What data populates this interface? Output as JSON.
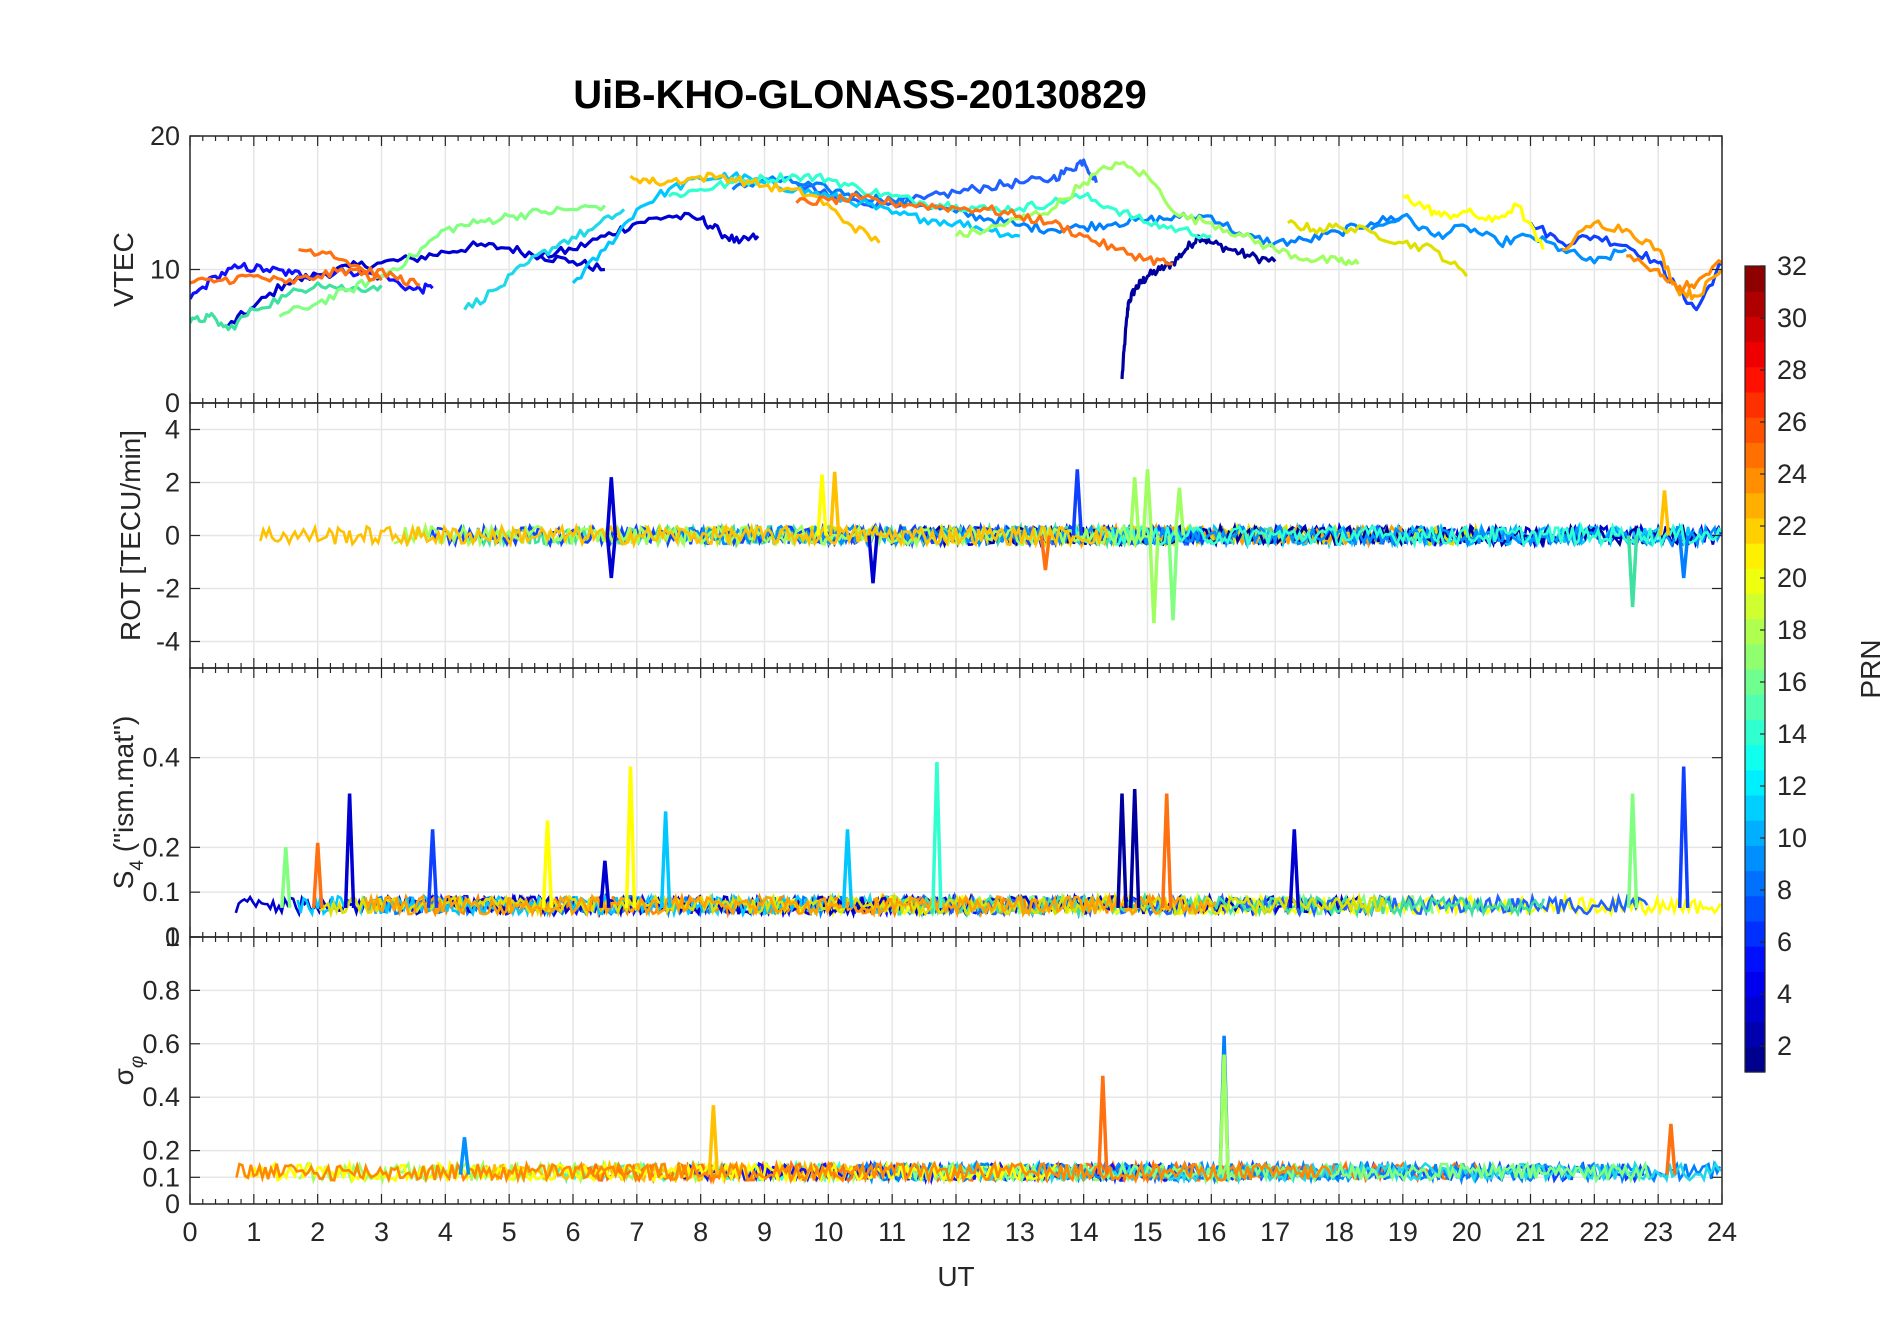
{
  "chart_data": [
    {
      "type": "line",
      "title": "UiB-KHO-GLONASS-20130829",
      "ylabel": "VTEC",
      "ylim": [
        0,
        20
      ],
      "yticks": [
        "0",
        "10",
        "20"
      ],
      "ytick_values": [
        0,
        10,
        20
      ],
      "xlim": [
        0,
        24
      ],
      "grid": true,
      "series": [
        {
          "color": "#00009f",
          "x": [
            14.6,
            14.65,
            14.7,
            14.8,
            14.9,
            15.0,
            15.2,
            15.4,
            15.6,
            15.8,
            16.0,
            16.3,
            16.6,
            17.0
          ],
          "y": [
            1.8,
            5.0,
            7.5,
            8.5,
            9.0,
            9.5,
            10.0,
            10.5,
            11.5,
            12.5,
            12.0,
            11.5,
            11.0,
            10.6
          ]
        },
        {
          "color": "#0000d0",
          "x": [
            0.6,
            1.0,
            1.5,
            2.0,
            2.5,
            3.0,
            3.5,
            4.0,
            4.5,
            5.0,
            5.5,
            6.0,
            6.5
          ],
          "y": [
            5.8,
            7.2,
            9.0,
            9.6,
            10.2,
            10.5,
            10.8,
            11.3,
            11.8,
            11.6,
            11.0,
            10.6,
            10.0
          ]
        },
        {
          "color": "#0000d0",
          "x": [
            5.5,
            6.0,
            6.5,
            7.0,
            7.5,
            8.0,
            8.3,
            8.6,
            8.9
          ],
          "y": [
            11.0,
            11.5,
            12.5,
            13.5,
            14.0,
            13.8,
            12.8,
            12.0,
            12.5
          ]
        },
        {
          "color": "#1010ff",
          "x": [
            0.0,
            0.4,
            0.8,
            1.2,
            1.6,
            2.0,
            2.5,
            3.0,
            3.5,
            3.8
          ],
          "y": [
            7.8,
            9.5,
            10.2,
            10.0,
            9.7,
            9.6,
            9.9,
            9.5,
            8.5,
            8.6
          ]
        },
        {
          "color": "#2060ff",
          "x": [
            9.5,
            10.0,
            10.5,
            11.0,
            11.5,
            12.0,
            12.5,
            13.0,
            13.5,
            13.8,
            14.0,
            14.2
          ],
          "y": [
            16.5,
            15.5,
            15.0,
            15.0,
            15.3,
            15.8,
            16.2,
            16.5,
            16.8,
            17.5,
            18.2,
            16.5
          ]
        },
        {
          "color": "#1040ff",
          "x": [
            21.0,
            21.5,
            22.0,
            22.5,
            23.0,
            23.3,
            23.6,
            24.0
          ],
          "y": [
            13.5,
            12.0,
            12.5,
            11.8,
            10.5,
            8.5,
            7.0,
            10.5
          ]
        },
        {
          "color": "#0080ff",
          "x": [
            8.5,
            9.0,
            9.5,
            10.0,
            10.5,
            11.0,
            11.5,
            12.0,
            12.5,
            13.0,
            13.5,
            14.0,
            14.5,
            15.0,
            15.5,
            16.0,
            16.5,
            17.0,
            17.5,
            18.0,
            18.5,
            19.0
          ],
          "y": [
            16.0,
            16.8,
            16.5,
            16.0,
            15.5,
            15.2,
            14.8,
            14.3,
            13.8,
            13.3,
            13.0,
            13.2,
            13.5,
            13.7,
            13.9,
            14.0,
            12.5,
            12.0,
            12.2,
            12.8,
            13.5,
            14.0
          ]
        },
        {
          "color": "#0090ff",
          "x": [
            18.5,
            19.0,
            19.5,
            20.0,
            20.5,
            21.0,
            21.5,
            22.0,
            22.5
          ],
          "y": [
            13.0,
            14.0,
            12.5,
            13.2,
            12.0,
            12.5,
            11.5,
            10.5,
            11.5
          ]
        },
        {
          "color": "#00c8ff",
          "x": [
            6.0,
            6.5,
            7.0,
            7.5,
            8.0,
            8.5,
            9.0,
            9.5,
            10.0,
            10.5,
            11.0,
            11.5,
            12.0,
            12.5,
            13.0
          ],
          "y": [
            9.0,
            11.5,
            14.5,
            16.0,
            16.8,
            17.0,
            16.5,
            16.0,
            15.5,
            15.0,
            14.2,
            13.8,
            13.5,
            13.0,
            12.5
          ]
        },
        {
          "color": "#30ffd0",
          "x": [
            7.5,
            8.0,
            8.5,
            9.0,
            9.5,
            10.0,
            10.5,
            11.0,
            11.5,
            12.0,
            12.5,
            13.0,
            13.5,
            14.0,
            14.5,
            15.0,
            15.5,
            16.0
          ],
          "y": [
            15.5,
            16.0,
            16.5,
            16.8,
            17.0,
            16.8,
            16.0,
            15.5,
            15.0,
            14.8,
            14.5,
            14.6,
            15.0,
            15.5,
            14.5,
            13.5,
            13.0,
            12.5
          ]
        },
        {
          "color": "#40e0a0",
          "x": [
            0.0,
            0.3,
            0.6,
            1.0,
            1.5,
            2.0,
            2.5,
            3.0
          ],
          "y": [
            6.0,
            6.5,
            5.5,
            7.0,
            8.0,
            9.0,
            8.5,
            8.8
          ]
        },
        {
          "color": "#20d8e8",
          "x": [
            4.3,
            4.8,
            5.3,
            5.8,
            6.3,
            6.8
          ],
          "y": [
            7.0,
            8.5,
            10.5,
            12.0,
            13.0,
            14.5
          ]
        },
        {
          "color": "#80ff80",
          "x": [
            1.4,
            2.0,
            2.5,
            3.0,
            3.5,
            4.0,
            4.5,
            5.0,
            5.5,
            6.0,
            6.5
          ],
          "y": [
            6.5,
            7.5,
            8.5,
            9.5,
            11.0,
            13.0,
            13.5,
            14.0,
            14.3,
            14.5,
            14.8
          ]
        },
        {
          "color": "#a0ff60",
          "x": [
            12.0,
            12.5,
            13.0,
            13.5,
            14.0,
            14.5,
            15.0,
            15.5,
            16.0,
            16.5,
            17.0,
            17.5,
            18.0,
            18.3
          ],
          "y": [
            12.5,
            13.0,
            13.8,
            14.5,
            16.5,
            18.0,
            17.0,
            14.0,
            13.5,
            12.5,
            11.5,
            10.8,
            10.6,
            10.4
          ]
        },
        {
          "color": "#ffff00",
          "x": [
            19.0,
            19.3,
            19.6,
            20.0,
            20.4,
            20.8,
            21.2
          ],
          "y": [
            15.5,
            14.8,
            14.0,
            14.3,
            13.6,
            14.8,
            11.5
          ]
        },
        {
          "color": "#e0e000",
          "x": [
            17.2,
            17.6,
            18.0,
            18.5,
            19.0,
            19.5,
            20.0
          ],
          "y": [
            13.5,
            13.0,
            13.2,
            12.8,
            12.0,
            11.5,
            9.5
          ]
        },
        {
          "color": "#ffc000",
          "x": [
            6.9,
            7.3,
            7.8,
            8.3,
            8.8,
            9.3,
            9.8,
            10.3,
            10.8
          ],
          "y": [
            17.0,
            16.5,
            16.8,
            17.0,
            16.5,
            16.0,
            15.5,
            13.5,
            12.0
          ]
        },
        {
          "color": "#ffa000",
          "x": [
            21.5,
            22.0,
            22.5,
            23.0,
            23.3,
            23.6,
            24.0
          ],
          "y": [
            11.5,
            13.5,
            13.0,
            11.5,
            8.5,
            8.0,
            10.0
          ]
        },
        {
          "color": "#ff7010",
          "x": [
            1.7,
            2.2,
            2.7,
            3.2,
            3.6
          ],
          "y": [
            11.5,
            11.3,
            10.0,
            9.5,
            8.8
          ]
        },
        {
          "color": "#ff7010",
          "x": [
            9.5,
            10.0,
            10.5,
            11.0,
            11.5,
            12.0,
            12.5,
            13.0,
            13.5,
            14.0,
            14.5,
            15.0,
            15.4
          ],
          "y": [
            15.0,
            15.2,
            15.3,
            15.0,
            14.8,
            14.6,
            14.5,
            14.0,
            13.5,
            12.5,
            11.5,
            10.8,
            10.4
          ]
        },
        {
          "color": "#ff7010",
          "x": [
            0.0,
            0.5,
            1.0,
            1.5,
            2.0,
            2.5,
            3.0
          ],
          "y": [
            9.0,
            9.2,
            9.5,
            9.0,
            9.5,
            10.0,
            9.2
          ]
        },
        {
          "color": "#ff8800",
          "x": [
            22.5,
            23.0,
            23.3,
            23.6,
            24.0
          ],
          "y": [
            11.0,
            10.0,
            8.5,
            9.0,
            10.5
          ]
        }
      ]
    },
    {
      "type": "line",
      "ylabel": "ROT [TECU/min]",
      "ylim": [
        -5,
        5
      ],
      "yticks": [
        "-4",
        "-2",
        "0",
        "2",
        "4"
      ],
      "ytick_values": [
        -4,
        -2,
        0,
        2,
        4
      ],
      "xlim": [
        0,
        24
      ],
      "grid": true,
      "base_level": 0,
      "noise_amplitude": 0.35,
      "spikes": [
        {
          "x": 6.6,
          "y": 2.2,
          "color": "#0000d0"
        },
        {
          "x": 6.6,
          "y": -1.6,
          "color": "#0000d0"
        },
        {
          "x": 9.9,
          "y": 2.3,
          "color": "#ffff00"
        },
        {
          "x": 10.1,
          "y": 2.4,
          "color": "#ffc000"
        },
        {
          "x": 10.7,
          "y": -1.8,
          "color": "#0000d0"
        },
        {
          "x": 13.9,
          "y": 2.5,
          "color": "#1040ff"
        },
        {
          "x": 13.4,
          "y": -1.3,
          "color": "#ff7010"
        },
        {
          "x": 14.8,
          "y": 2.2,
          "color": "#a0ff60"
        },
        {
          "x": 15.0,
          "y": 2.5,
          "color": "#a0ff60"
        },
        {
          "x": 15.1,
          "y": -3.3,
          "color": "#a0ff60"
        },
        {
          "x": 15.4,
          "y": -3.2,
          "color": "#80ff80"
        },
        {
          "x": 15.5,
          "y": 1.8,
          "color": "#a0ff60"
        },
        {
          "x": 22.6,
          "y": -2.7,
          "color": "#40e0a0"
        },
        {
          "x": 23.1,
          "y": 1.7,
          "color": "#ffc000"
        },
        {
          "x": 23.4,
          "y": -1.6,
          "color": "#0080ff"
        }
      ]
    },
    {
      "type": "line",
      "ylabel": "S₄ (\"ism.mat\")",
      "ylim": [
        0,
        0.6
      ],
      "yticks": [
        "0",
        "0.1",
        "0.2",
        "0.4"
      ],
      "ytick_values": [
        0,
        0.1,
        0.2,
        0.4
      ],
      "xlim": [
        0,
        24
      ],
      "grid": true,
      "base_level": 0.065,
      "noise_amplitude": 0.025,
      "spikes": [
        {
          "x": 2.0,
          "y": 0.21,
          "color": "#ff7010"
        },
        {
          "x": 2.5,
          "y": 0.32,
          "color": "#0000d0"
        },
        {
          "x": 1.5,
          "y": 0.2,
          "color": "#80ff80"
        },
        {
          "x": 3.8,
          "y": 0.24,
          "color": "#1040ff"
        },
        {
          "x": 5.6,
          "y": 0.26,
          "color": "#ffff00"
        },
        {
          "x": 6.5,
          "y": 0.17,
          "color": "#0000d0"
        },
        {
          "x": 6.9,
          "y": 0.38,
          "color": "#ffff00"
        },
        {
          "x": 7.45,
          "y": 0.28,
          "color": "#00c8ff"
        },
        {
          "x": 10.3,
          "y": 0.24,
          "color": "#00c8ff"
        },
        {
          "x": 11.7,
          "y": 0.39,
          "color": "#30ffd0"
        },
        {
          "x": 14.6,
          "y": 0.32,
          "color": "#00009f"
        },
        {
          "x": 14.8,
          "y": 0.33,
          "color": "#00009f"
        },
        {
          "x": 15.3,
          "y": 0.32,
          "color": "#ff7010"
        },
        {
          "x": 17.3,
          "y": 0.24,
          "color": "#0000d0"
        },
        {
          "x": 22.6,
          "y": 0.32,
          "color": "#80ff80"
        },
        {
          "x": 23.4,
          "y": 0.38,
          "color": "#1040ff"
        }
      ]
    },
    {
      "type": "line",
      "ylabel": "σ_φ",
      "ylim": [
        0,
        1
      ],
      "yticks": [
        "0",
        "0.1",
        "0.2",
        "0.4",
        "0.6",
        "0.8",
        "1"
      ],
      "ytick_values": [
        0,
        0.1,
        0.2,
        0.4,
        0.6,
        0.8,
        1.0
      ],
      "xlabel": "UT",
      "xticks": [
        "0",
        "1",
        "2",
        "3",
        "4",
        "5",
        "6",
        "7",
        "8",
        "9",
        "10",
        "11",
        "12",
        "13",
        "14",
        "15",
        "16",
        "17",
        "18",
        "19",
        "20",
        "21",
        "22",
        "23",
        "24"
      ],
      "xlim": [
        0,
        24
      ],
      "grid": true,
      "base_level": 0.11,
      "noise_amplitude": 0.04,
      "spikes": [
        {
          "x": 8.2,
          "y": 0.37,
          "color": "#ffc000"
        },
        {
          "x": 14.3,
          "y": 0.48,
          "color": "#ff7010"
        },
        {
          "x": 16.2,
          "y": 0.63,
          "color": "#0080ff"
        },
        {
          "x": 16.2,
          "y": 0.56,
          "color": "#a0ff60"
        },
        {
          "x": 23.2,
          "y": 0.3,
          "color": "#ff7010"
        },
        {
          "x": 4.3,
          "y": 0.25,
          "color": "#0090ff"
        }
      ]
    }
  ],
  "colorbar": {
    "label": "PRN",
    "ticks": [
      "2",
      "4",
      "6",
      "8",
      "10",
      "12",
      "14",
      "16",
      "18",
      "20",
      "22",
      "24",
      "26",
      "28",
      "30",
      "32"
    ],
    "tick_values": [
      2,
      4,
      6,
      8,
      10,
      12,
      14,
      16,
      18,
      20,
      22,
      24,
      26,
      28,
      30,
      32
    ],
    "range": [
      1,
      32
    ],
    "colormap": "jet"
  },
  "palette": [
    "#00009f",
    "#0000d0",
    "#1010ff",
    "#1040ff",
    "#2060ff",
    "#0080ff",
    "#0090ff",
    "#00c8ff",
    "#20d8e8",
    "#30ffd0",
    "#40e0a0",
    "#80ff80",
    "#a0ff60",
    "#e0e000",
    "#ffff00",
    "#ffc000",
    "#ffa000",
    "#ff8800",
    "#ff7010"
  ]
}
